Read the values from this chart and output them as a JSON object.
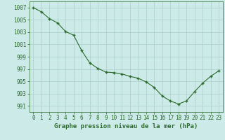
{
  "x": [
    0,
    1,
    2,
    3,
    4,
    5,
    6,
    7,
    8,
    9,
    10,
    11,
    12,
    13,
    14,
    15,
    16,
    17,
    18,
    19,
    20,
    21,
    22,
    23
  ],
  "y": [
    1007.0,
    1006.3,
    1005.2,
    1004.5,
    1003.1,
    1002.5,
    1000.0,
    998.0,
    997.1,
    996.5,
    996.4,
    996.2,
    995.8,
    995.5,
    994.9,
    994.0,
    992.6,
    991.8,
    991.3,
    991.8,
    993.3,
    994.7,
    995.8,
    996.7
  ],
  "line_color": "#2d6a2d",
  "marker": "+",
  "marker_size": 3,
  "marker_linewidth": 1.0,
  "line_width": 0.8,
  "bg_color": "#cceae7",
  "grid_color": "#aacfcc",
  "xlabel": "Graphe pression niveau de la mer (hPa)",
  "xlabel_fontsize": 6.5,
  "tick_fontsize": 5.5,
  "ylim": [
    990.0,
    1008.0
  ],
  "yticks": [
    991,
    993,
    995,
    997,
    999,
    1001,
    1003,
    1005,
    1007
  ],
  "xlim": [
    -0.5,
    23.5
  ],
  "xticks": [
    0,
    1,
    2,
    3,
    4,
    5,
    6,
    7,
    8,
    9,
    10,
    11,
    12,
    13,
    14,
    15,
    16,
    17,
    18,
    19,
    20,
    21,
    22,
    23
  ]
}
